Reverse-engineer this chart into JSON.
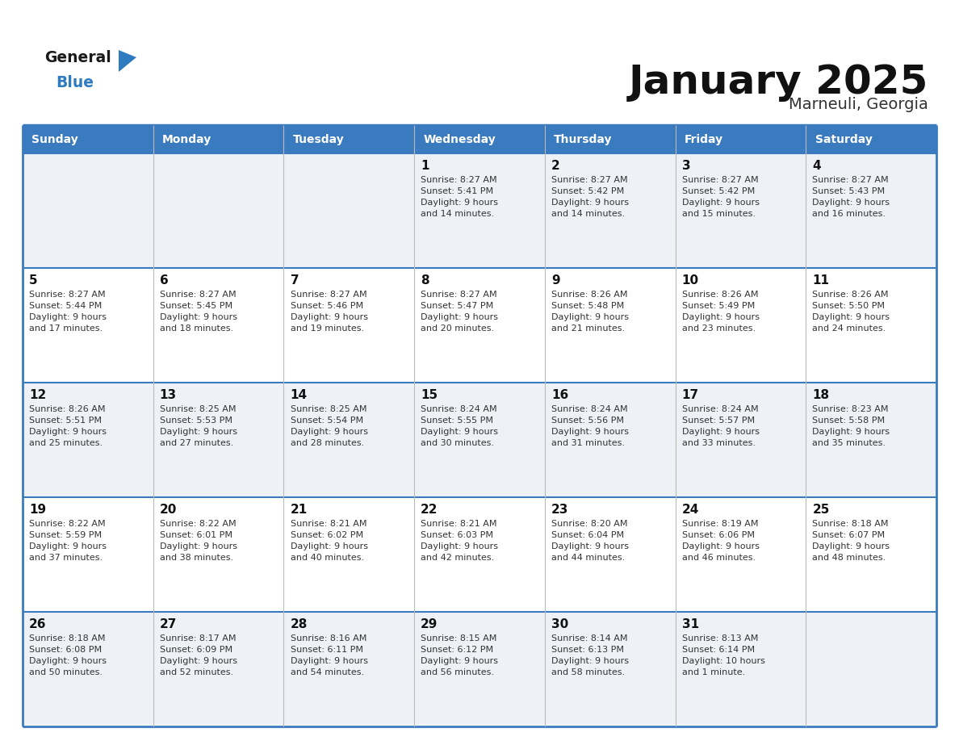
{
  "title": "January 2025",
  "subtitle": "Marneuli, Georgia",
  "days_of_week": [
    "Sunday",
    "Monday",
    "Tuesday",
    "Wednesday",
    "Thursday",
    "Friday",
    "Saturday"
  ],
  "header_bg": "#3a7abf",
  "header_text": "#ffffff",
  "row_bg_odd": "#eef2f7",
  "row_bg_even": "#ffffff",
  "cell_text_color": "#333333",
  "day_num_color": "#111111",
  "border_color": "#3a7abf",
  "title_color": "#111111",
  "subtitle_color": "#333333",
  "logo_general_color": "#1a1a1a",
  "logo_blue_color": "#2e7bbf",
  "calendar_data": [
    [
      {
        "day": null,
        "info": null
      },
      {
        "day": null,
        "info": null
      },
      {
        "day": null,
        "info": null
      },
      {
        "day": 1,
        "info": "Sunrise: 8:27 AM\nSunset: 5:41 PM\nDaylight: 9 hours\nand 14 minutes."
      },
      {
        "day": 2,
        "info": "Sunrise: 8:27 AM\nSunset: 5:42 PM\nDaylight: 9 hours\nand 14 minutes."
      },
      {
        "day": 3,
        "info": "Sunrise: 8:27 AM\nSunset: 5:42 PM\nDaylight: 9 hours\nand 15 minutes."
      },
      {
        "day": 4,
        "info": "Sunrise: 8:27 AM\nSunset: 5:43 PM\nDaylight: 9 hours\nand 16 minutes."
      }
    ],
    [
      {
        "day": 5,
        "info": "Sunrise: 8:27 AM\nSunset: 5:44 PM\nDaylight: 9 hours\nand 17 minutes."
      },
      {
        "day": 6,
        "info": "Sunrise: 8:27 AM\nSunset: 5:45 PM\nDaylight: 9 hours\nand 18 minutes."
      },
      {
        "day": 7,
        "info": "Sunrise: 8:27 AM\nSunset: 5:46 PM\nDaylight: 9 hours\nand 19 minutes."
      },
      {
        "day": 8,
        "info": "Sunrise: 8:27 AM\nSunset: 5:47 PM\nDaylight: 9 hours\nand 20 minutes."
      },
      {
        "day": 9,
        "info": "Sunrise: 8:26 AM\nSunset: 5:48 PM\nDaylight: 9 hours\nand 21 minutes."
      },
      {
        "day": 10,
        "info": "Sunrise: 8:26 AM\nSunset: 5:49 PM\nDaylight: 9 hours\nand 23 minutes."
      },
      {
        "day": 11,
        "info": "Sunrise: 8:26 AM\nSunset: 5:50 PM\nDaylight: 9 hours\nand 24 minutes."
      }
    ],
    [
      {
        "day": 12,
        "info": "Sunrise: 8:26 AM\nSunset: 5:51 PM\nDaylight: 9 hours\nand 25 minutes."
      },
      {
        "day": 13,
        "info": "Sunrise: 8:25 AM\nSunset: 5:53 PM\nDaylight: 9 hours\nand 27 minutes."
      },
      {
        "day": 14,
        "info": "Sunrise: 8:25 AM\nSunset: 5:54 PM\nDaylight: 9 hours\nand 28 minutes."
      },
      {
        "day": 15,
        "info": "Sunrise: 8:24 AM\nSunset: 5:55 PM\nDaylight: 9 hours\nand 30 minutes."
      },
      {
        "day": 16,
        "info": "Sunrise: 8:24 AM\nSunset: 5:56 PM\nDaylight: 9 hours\nand 31 minutes."
      },
      {
        "day": 17,
        "info": "Sunrise: 8:24 AM\nSunset: 5:57 PM\nDaylight: 9 hours\nand 33 minutes."
      },
      {
        "day": 18,
        "info": "Sunrise: 8:23 AM\nSunset: 5:58 PM\nDaylight: 9 hours\nand 35 minutes."
      }
    ],
    [
      {
        "day": 19,
        "info": "Sunrise: 8:22 AM\nSunset: 5:59 PM\nDaylight: 9 hours\nand 37 minutes."
      },
      {
        "day": 20,
        "info": "Sunrise: 8:22 AM\nSunset: 6:01 PM\nDaylight: 9 hours\nand 38 minutes."
      },
      {
        "day": 21,
        "info": "Sunrise: 8:21 AM\nSunset: 6:02 PM\nDaylight: 9 hours\nand 40 minutes."
      },
      {
        "day": 22,
        "info": "Sunrise: 8:21 AM\nSunset: 6:03 PM\nDaylight: 9 hours\nand 42 minutes."
      },
      {
        "day": 23,
        "info": "Sunrise: 8:20 AM\nSunset: 6:04 PM\nDaylight: 9 hours\nand 44 minutes."
      },
      {
        "day": 24,
        "info": "Sunrise: 8:19 AM\nSunset: 6:06 PM\nDaylight: 9 hours\nand 46 minutes."
      },
      {
        "day": 25,
        "info": "Sunrise: 8:18 AM\nSunset: 6:07 PM\nDaylight: 9 hours\nand 48 minutes."
      }
    ],
    [
      {
        "day": 26,
        "info": "Sunrise: 8:18 AM\nSunset: 6:08 PM\nDaylight: 9 hours\nand 50 minutes."
      },
      {
        "day": 27,
        "info": "Sunrise: 8:17 AM\nSunset: 6:09 PM\nDaylight: 9 hours\nand 52 minutes."
      },
      {
        "day": 28,
        "info": "Sunrise: 8:16 AM\nSunset: 6:11 PM\nDaylight: 9 hours\nand 54 minutes."
      },
      {
        "day": 29,
        "info": "Sunrise: 8:15 AM\nSunset: 6:12 PM\nDaylight: 9 hours\nand 56 minutes."
      },
      {
        "day": 30,
        "info": "Sunrise: 8:14 AM\nSunset: 6:13 PM\nDaylight: 9 hours\nand 58 minutes."
      },
      {
        "day": 31,
        "info": "Sunrise: 8:13 AM\nSunset: 6:14 PM\nDaylight: 10 hours\nand 1 minute."
      },
      {
        "day": null,
        "info": null
      }
    ]
  ]
}
